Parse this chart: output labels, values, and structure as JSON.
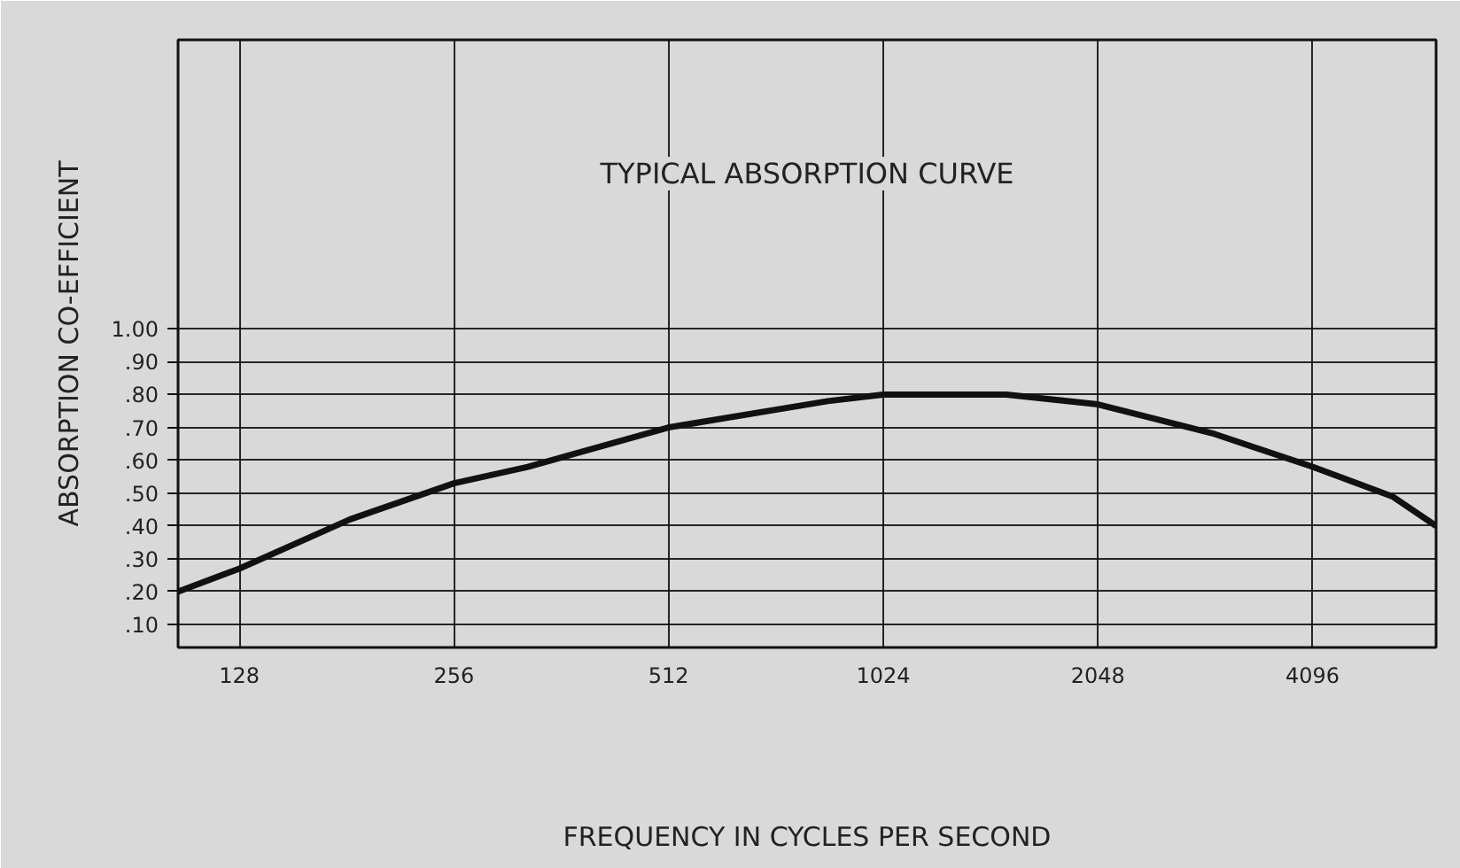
{
  "chart_data": {
    "type": "line",
    "title": "TYPICAL ABSORPTION CURVE",
    "xlabel": "FREQUENCY IN CYCLES PER SECOND",
    "ylabel": "ABSORPTION CO-EFFICIENT",
    "x": [
      105,
      128,
      183,
      256,
      325,
      512,
      856,
      1024,
      1524,
      2048,
      2985,
      4096,
      5300,
      6105
    ],
    "series": [
      {
        "color": "#111111",
        "values": [
          0.2,
          0.27,
          0.42,
          0.53,
          0.58,
          0.7,
          0.78,
          0.8,
          0.8,
          0.77,
          0.68,
          0.58,
          0.49,
          0.4
        ]
      }
    ],
    "log": "x",
    "xlim": [
      105,
      6105
    ],
    "xticks": [
      128,
      256,
      512,
      1024,
      2048,
      4096
    ],
    "ylim": [
      0.03,
      1.88
    ],
    "yticks": [
      {
        "value": 0.1,
        "label": ".10"
      },
      {
        "value": 0.2,
        "label": ".20"
      },
      {
        "value": 0.3,
        "label": ".30"
      },
      {
        "value": 0.4,
        "label": ".40"
      },
      {
        "value": 0.5,
        "label": ".50"
      },
      {
        "value": 0.6,
        "label": ".60"
      },
      {
        "value": 0.7,
        "label": ".70"
      },
      {
        "value": 0.8,
        "label": ".80"
      },
      {
        "value": 0.9,
        "label": ".90"
      },
      {
        "value": 1.0,
        "label": "1.00"
      }
    ],
    "grid": true,
    "marker": "none",
    "line_style": "solid"
  }
}
